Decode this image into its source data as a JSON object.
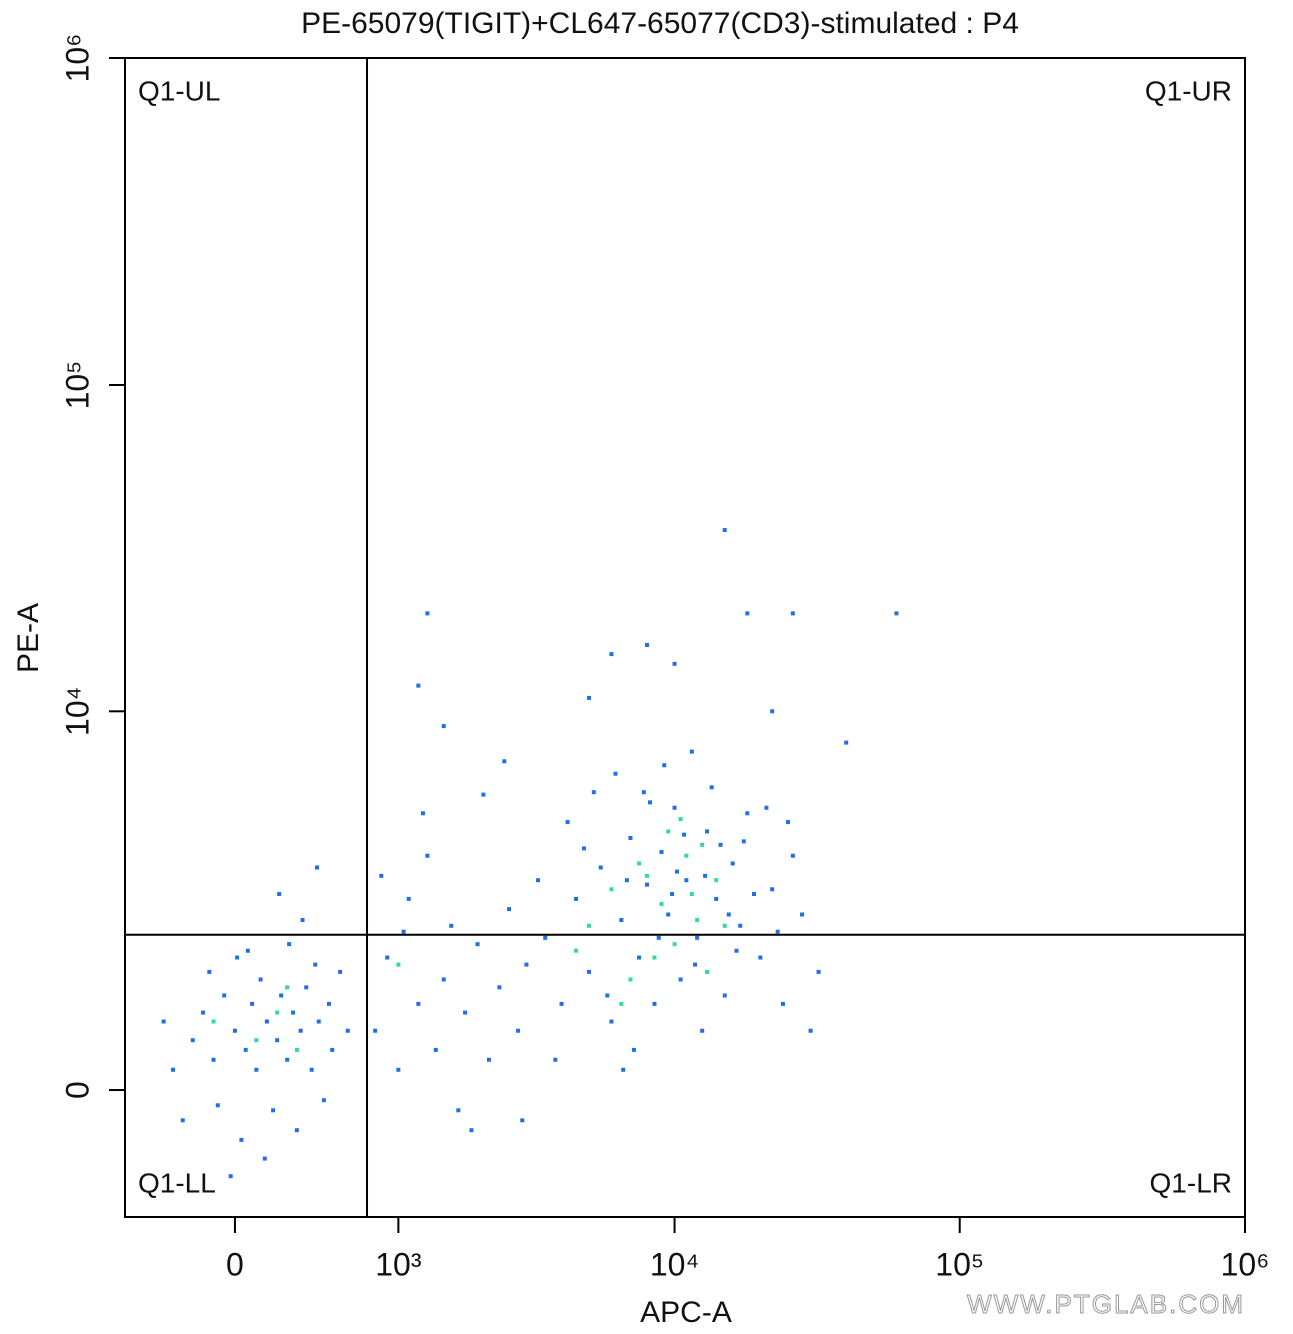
{
  "chart_data": {
    "type": "scatter",
    "title": "PE-65079(TIGIT)+CL647-65077(CD3)-stimulated : P4",
    "x_label": "APC-A",
    "y_label": "PE-A",
    "xlim": [
      -581,
      1000000
    ],
    "ylim": [
      -1421,
      1000000
    ],
    "xticks": [
      0,
      {
        "value": 1000,
        "label": "10³"
      },
      {
        "value": 10000,
        "label": "10⁴"
      },
      {
        "value": 100000,
        "label": "10⁵"
      },
      {
        "value": 1000000,
        "label": "10⁶"
      }
    ],
    "yticks": [
      0,
      {
        "value": 10000,
        "label": "10⁴"
      },
      {
        "value": 100000,
        "label": "10⁵"
      },
      {
        "value": 1000000,
        "label": "10⁶"
      }
    ],
    "gates": {
      "x": 737,
      "y": 1850
    },
    "quadrants": {
      "ul": "Q1-UL",
      "ur": "Q1-UR",
      "ll": "Q1-LL",
      "lr": "Q1-LR"
    },
    "watermark": "WWW.PTGLAB.COM",
    "point_groups": [
      {
        "color": "#1f6fe8",
        "x": [
          -300,
          -200,
          -150,
          -100,
          -50,
          0,
          50,
          80,
          100,
          120,
          150,
          180,
          200,
          220,
          250,
          280,
          300,
          320,
          350,
          380,
          400,
          420,
          450,
          480,
          500,
          550,
          600,
          -250,
          -350,
          -120,
          30,
          60,
          140,
          260,
          -80,
          10,
          330,
          210,
          -20,
          410,
          800,
          900,
          1000,
          1100,
          1200,
          1300,
          1400,
          1500,
          1600,
          1700,
          1800,
          2000,
          2200,
          2400,
          2600,
          2800,
          3000,
          1250,
          2100,
          1900,
          850,
          2500,
          1500,
          2900,
          1050,
          3500,
          4000,
          4500,
          5000,
          5500,
          6000,
          6500,
          7000,
          7500,
          8000,
          8500,
          9000,
          9500,
          10000,
          10500,
          11000,
          12000,
          13000,
          14000,
          15000,
          16000,
          17000,
          18000,
          20000,
          22000,
          24000,
          26000,
          28000,
          30000,
          4200,
          5200,
          6200,
          7200,
          8200,
          9200,
          10200,
          11500,
          12500,
          13500,
          14500,
          16500,
          19000,
          21000,
          23000,
          3800,
          4800,
          5800,
          6800,
          7800,
          8800,
          9800,
          10800,
          11800,
          12800,
          15500,
          17500,
          25000,
          32000,
          3300,
          6600,
          1300,
          1200,
          6000,
          8000,
          10000,
          18000,
          26000,
          60000,
          15000,
          40000,
          22000,
          5000
        ],
        "y": [
          200,
          500,
          800,
          300,
          1000,
          600,
          400,
          900,
          200,
          1200,
          700,
          -200,
          500,
          1000,
          300,
          800,
          -400,
          600,
          1100,
          200,
          1400,
          700,
          -100,
          900,
          400,
          1300,
          600,
          -300,
          700,
          1300,
          -500,
          1600,
          -700,
          1700,
          -150,
          1500,
          2100,
          2600,
          -900,
          3200,
          600,
          1500,
          200,
          2500,
          900,
          3500,
          400,
          1200,
          2000,
          -200,
          800,
          1700,
          300,
          1100,
          2300,
          600,
          1400,
          4800,
          5500,
          -400,
          3000,
          7000,
          9000,
          -300,
          1900,
          1800,
          900,
          2500,
          1300,
          3200,
          700,
          2100,
          4000,
          1500,
          2800,
          900,
          3600,
          2200,
          5000,
          1200,
          2900,
          1800,
          4200,
          2500,
          1000,
          3300,
          2000,
          4800,
          1500,
          2700,
          900,
          3500,
          2200,
          600,
          4500,
          5600,
          6400,
          400,
          5200,
          6800,
          3100,
          7500,
          600,
          5800,
          3800,
          1600,
          2600,
          5000,
          1900,
          300,
          3700,
          1000,
          2900,
          5600,
          1800,
          2600,
          4100,
          1400,
          3000,
          2200,
          3900,
          4500,
          1300,
          2900,
          200,
          20000,
          12000,
          15000,
          16000,
          14000,
          20000,
          20000,
          20000,
          36000,
          8000,
          10000,
          11000
        ]
      },
      {
        "color": "#2fdca0",
        "x": [
          100,
          200,
          300,
          -100,
          250,
          5000,
          7000,
          8000,
          9000,
          10000,
          11000,
          12000,
          13000,
          6000,
          14000,
          9500,
          8500,
          15000,
          7500,
          4500,
          10500,
          11500,
          6500,
          12500,
          1000
        ],
        "y": [
          500,
          800,
          400,
          700,
          1100,
          2000,
          1200,
          3000,
          2400,
          1700,
          3500,
          2100,
          1300,
          2700,
          2900,
          4200,
          1500,
          2000,
          3300,
          1600,
          4600,
          2600,
          900,
          3800,
          1400
        ]
      }
    ]
  }
}
